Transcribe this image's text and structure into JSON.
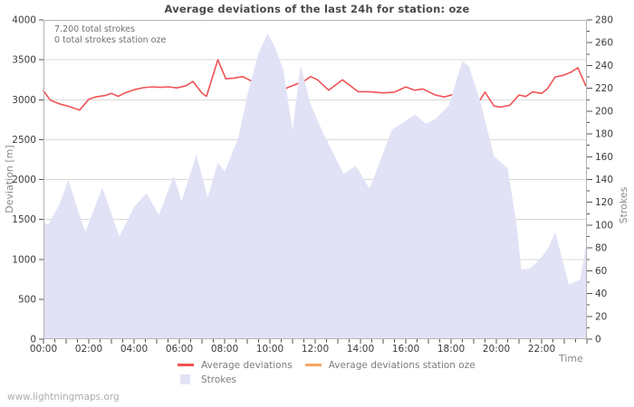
{
  "page": {
    "watermark": "www.lightningmaps.org"
  },
  "chart_data": {
    "type": "line+area",
    "title": "Average deviations of the last 24h for station: oze",
    "xlabel": "Time",
    "ylabel_left": "Deviation [m]",
    "ylabel_right": "Strokes",
    "annotations": [
      "7.200 total strokes",
      "0 total strokes station oze"
    ],
    "grid": "horizontal-only",
    "legend_position": "bottom-center",
    "x_range_hours": [
      0,
      24
    ],
    "x_minor_step_hours": 0.5,
    "x_tick_labels": [
      {
        "t": 0,
        "label": "00:00"
      },
      {
        "t": 2,
        "label": "02:00"
      },
      {
        "t": 4,
        "label": "04:00"
      },
      {
        "t": 6,
        "label": "06:00"
      },
      {
        "t": 8,
        "label": "08:00"
      },
      {
        "t": 10,
        "label": "10:00"
      },
      {
        "t": 12,
        "label": "12:00"
      },
      {
        "t": 14,
        "label": "14:00"
      },
      {
        "t": 16,
        "label": "16:00"
      },
      {
        "t": 18,
        "label": "18:00"
      },
      {
        "t": 20,
        "label": "20:00"
      },
      {
        "t": 22,
        "label": "22:00"
      }
    ],
    "ylim_left": [
      0,
      4000
    ],
    "ytick_step_left": 500,
    "ylim_right": [
      0,
      280
    ],
    "ytick_step_right": 20,
    "ytick_minor_step_right": 10,
    "colors": {
      "deviation_line": "#ef5356",
      "station_line": "#f7a55f",
      "strokes_fill": "#e2e2f6",
      "grid": "#d9d9d9",
      "border": "#b3b3b3",
      "tick": "#555555",
      "tick_label": "#3a3a3a"
    },
    "series": [
      {
        "name": "Average deviations",
        "type": "line",
        "axis": "left",
        "color": "#ef5356",
        "points": [
          [
            0,
            3110
          ],
          [
            0.3,
            2995
          ],
          [
            0.7,
            2948
          ],
          [
            1.1,
            2918
          ],
          [
            1.6,
            2870
          ],
          [
            2.0,
            3005
          ],
          [
            2.3,
            3035
          ],
          [
            2.7,
            3052
          ],
          [
            3.0,
            3080
          ],
          [
            3.3,
            3042
          ],
          [
            3.6,
            3085
          ],
          [
            4.0,
            3125
          ],
          [
            4.4,
            3150
          ],
          [
            4.8,
            3162
          ],
          [
            5.15,
            3155
          ],
          [
            5.5,
            3162
          ],
          [
            5.9,
            3148
          ],
          [
            6.3,
            3175
          ],
          [
            6.6,
            3230
          ],
          [
            7.0,
            3082
          ],
          [
            7.2,
            3042
          ],
          [
            7.7,
            3500
          ],
          [
            8.05,
            3262
          ],
          [
            8.4,
            3270
          ],
          [
            8.8,
            3290
          ],
          [
            9.2,
            3232
          ],
          [
            9.55,
            3220
          ],
          [
            9.75,
            3240
          ],
          [
            10.15,
            3042
          ],
          [
            10.8,
            3155
          ],
          [
            11.5,
            3232
          ],
          [
            11.8,
            3290
          ],
          [
            12.1,
            3250
          ],
          [
            12.6,
            3118
          ],
          [
            13.2,
            3250
          ],
          [
            13.9,
            3100
          ],
          [
            14.4,
            3100
          ],
          [
            15.0,
            3086
          ],
          [
            15.5,
            3095
          ],
          [
            16.0,
            3160
          ],
          [
            16.4,
            3118
          ],
          [
            16.75,
            3135
          ],
          [
            17.3,
            3060
          ],
          [
            17.7,
            3035
          ],
          [
            18.15,
            3070
          ],
          [
            18.45,
            3070
          ],
          [
            18.7,
            3000
          ],
          [
            19.0,
            2950
          ],
          [
            19.3,
            3005
          ],
          [
            19.5,
            3095
          ],
          [
            19.9,
            2920
          ],
          [
            20.2,
            2908
          ],
          [
            20.6,
            2930
          ],
          [
            21.0,
            3060
          ],
          [
            21.3,
            3040
          ],
          [
            21.6,
            3098
          ],
          [
            22.0,
            3080
          ],
          [
            22.25,
            3135
          ],
          [
            22.6,
            3285
          ],
          [
            22.95,
            3305
          ],
          [
            23.3,
            3345
          ],
          [
            23.6,
            3400
          ],
          [
            23.95,
            3175
          ]
        ]
      },
      {
        "name": "Average deviations station oze",
        "type": "line",
        "axis": "left",
        "color": "#f7a55f",
        "points": []
      },
      {
        "name": "Strokes",
        "type": "area",
        "axis": "right",
        "color": "#e2e2f6",
        "points": [
          [
            0,
            103
          ],
          [
            0.2,
            100
          ],
          [
            0.7,
            118
          ],
          [
            1.1,
            140
          ],
          [
            1.5,
            114
          ],
          [
            1.85,
            94
          ],
          [
            2.6,
            133
          ],
          [
            3.35,
            90
          ],
          [
            4.0,
            116
          ],
          [
            4.55,
            128
          ],
          [
            5.1,
            109
          ],
          [
            5.75,
            143
          ],
          [
            6.1,
            121
          ],
          [
            6.75,
            162
          ],
          [
            7.25,
            124
          ],
          [
            7.7,
            155
          ],
          [
            8.0,
            147
          ],
          [
            8.6,
            176
          ],
          [
            9.0,
            214
          ],
          [
            9.5,
            251
          ],
          [
            9.9,
            268
          ],
          [
            10.2,
            257
          ],
          [
            10.6,
            236
          ],
          [
            11.0,
            183
          ],
          [
            11.35,
            240
          ],
          [
            11.8,
            206
          ],
          [
            12.3,
            183
          ],
          [
            13.25,
            145
          ],
          [
            13.8,
            152
          ],
          [
            14.4,
            132
          ],
          [
            15.4,
            184
          ],
          [
            15.9,
            190
          ],
          [
            16.4,
            197
          ],
          [
            16.9,
            189
          ],
          [
            17.3,
            193
          ],
          [
            17.9,
            205
          ],
          [
            18.5,
            244
          ],
          [
            18.8,
            239
          ],
          [
            19.3,
            208
          ],
          [
            19.9,
            160
          ],
          [
            20.5,
            150
          ],
          [
            20.9,
            100
          ],
          [
            21.1,
            61
          ],
          [
            21.5,
            62
          ],
          [
            22.0,
            72
          ],
          [
            22.3,
            80
          ],
          [
            22.6,
            94
          ],
          [
            23.2,
            48
          ],
          [
            23.7,
            52
          ],
          [
            24,
            86
          ]
        ]
      }
    ]
  }
}
